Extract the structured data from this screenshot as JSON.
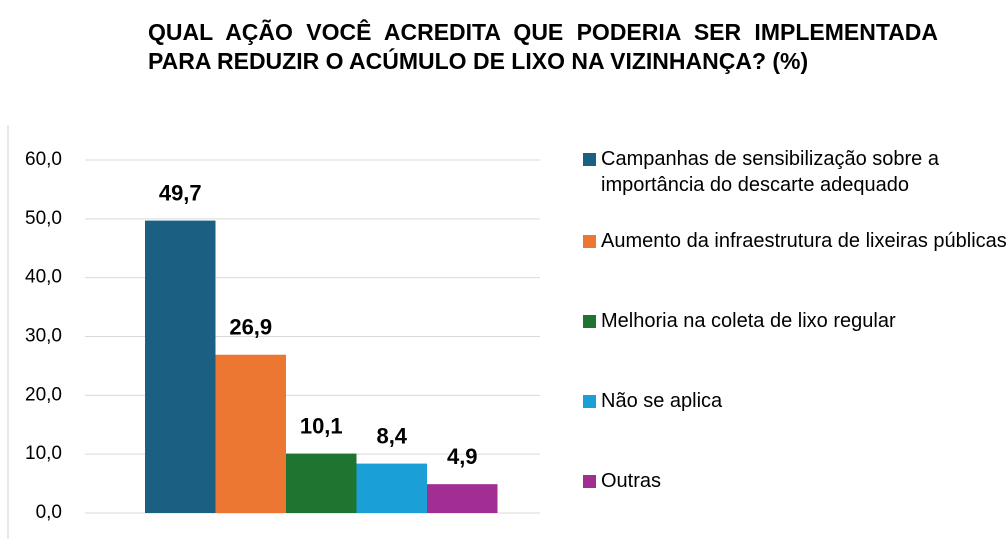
{
  "chart_data": {
    "type": "bar",
    "title": "QUAL AÇÃO VOCÊ ACREDITA QUE PODERIA SER IMPLEMENTADA PARA REDUZIR O ACÚMULO DE LIXO NA VIZINHANÇA? (%)",
    "series": [
      {
        "name": "Campanhas de sensibilização  sobre a importância do descarte adequado",
        "color": "#1b5f83",
        "values": [
          49.7
        ],
        "value_labels": [
          "49,7"
        ]
      },
      {
        "name": "Aumento da infraestrutura de lixeiras públicas",
        "color": "#ec7733",
        "values": [
          26.9
        ],
        "value_labels": [
          "26,9"
        ]
      },
      {
        "name": "Melhoria na coleta de lixo regular",
        "color": "#1f7530",
        "values": [
          10.1
        ],
        "value_labels": [
          "10,1"
        ]
      },
      {
        "name": "Não se aplica",
        "color": "#1aa0d6",
        "values": [
          8.4
        ],
        "value_labels": [
          "8,4"
        ]
      },
      {
        "name": "Outras",
        "color": "#a12e93",
        "values": [
          4.9
        ],
        "value_labels": [
          "4,9"
        ]
      }
    ],
    "ylim": [
      0,
      60
    ],
    "yticks": [
      {
        "value": 0,
        "label": "0,0"
      },
      {
        "value": 10,
        "label": "10,0"
      },
      {
        "value": 20,
        "label": "20,0"
      },
      {
        "value": 30,
        "label": "30,0"
      },
      {
        "value": 40,
        "label": "40,0"
      },
      {
        "value": 50,
        "label": "50,0"
      },
      {
        "value": 60,
        "label": "60,0"
      }
    ],
    "grid": true,
    "legend": "right"
  }
}
